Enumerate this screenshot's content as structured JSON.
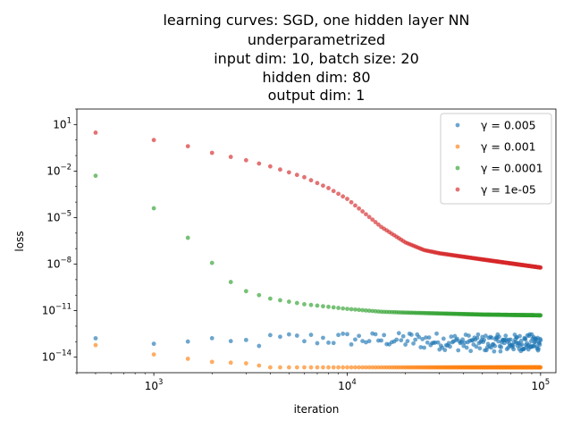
{
  "chart_data": {
    "type": "scatter",
    "title_lines": [
      "learning curves: SGD, one hidden layer NN",
      "underparametrized",
      "input dim: 10, batch size: 20",
      "hidden dim: 80",
      "output dim: 1"
    ],
    "xlabel": "iteration",
    "ylabel": "loss",
    "xscale": "log",
    "yscale": "log",
    "xlim": [
      400,
      120000
    ],
    "ylim": [
      1e-15,
      100.0
    ],
    "x_ticks": [
      {
        "value": 1000,
        "base": "10",
        "exp": "3"
      },
      {
        "value": 10000,
        "base": "10",
        "exp": "4"
      },
      {
        "value": 100000,
        "base": "10",
        "exp": "5"
      }
    ],
    "y_ticks": [
      {
        "value": 10,
        "base": "10",
        "exp": "1"
      },
      {
        "value": 0.01,
        "base": "10",
        "exp": "−2"
      },
      {
        "value": 1e-05,
        "base": "10",
        "exp": "−5"
      },
      {
        "value": 1e-08,
        "base": "10",
        "exp": "−8"
      },
      {
        "value": 1e-11,
        "base": "10",
        "exp": "−11"
      },
      {
        "value": 1e-14,
        "base": "10",
        "exp": "−14"
      }
    ],
    "grid": false,
    "legend_position": "top-right",
    "iteration_step": 500,
    "series": [
      {
        "name": "γ = 0.005",
        "color": "#1f77b4",
        "style": "noisy",
        "knots": [
          [
            500,
            1.2e-13
          ],
          [
            1000,
            1.1e-13
          ],
          [
            2000,
            6e-14
          ],
          [
            5000,
            1.5e-13
          ],
          [
            10000,
            1.5e-13
          ],
          [
            20000,
            1.3e-13
          ],
          [
            50000,
            8e-14
          ],
          [
            100000,
            9e-14
          ]
        ]
      },
      {
        "name": "γ = 0.001",
        "color": "#ff7f0e",
        "style": "smooth",
        "knots": [
          [
            500,
            6e-14
          ],
          [
            1000,
            1.5e-14
          ],
          [
            2000,
            5e-15
          ],
          [
            3000,
            4e-15
          ],
          [
            4000,
            2.2e-15
          ],
          [
            4500,
            2.2e-15
          ],
          [
            100000,
            2.2e-15
          ]
        ]
      },
      {
        "name": "γ = 0.0001",
        "color": "#2ca02c",
        "style": "smooth",
        "knots": [
          [
            500,
            0.005
          ],
          [
            1000,
            4e-05
          ],
          [
            1500,
            5e-07
          ],
          [
            2000,
            1.2e-08
          ],
          [
            2500,
            7e-10
          ],
          [
            3000,
            1.8e-10
          ],
          [
            4000,
            6e-11
          ],
          [
            6000,
            2.6e-11
          ],
          [
            10000,
            1.3e-11
          ],
          [
            15000,
            8.5e-12
          ],
          [
            20000,
            7.5e-12
          ],
          [
            50000,
            5.6e-12
          ],
          [
            100000,
            5e-12
          ]
        ]
      },
      {
        "name": "γ = 1e-05",
        "color": "#d62728",
        "style": "smooth",
        "knots": [
          [
            500,
            3
          ],
          [
            1000,
            1
          ],
          [
            1500,
            0.4
          ],
          [
            2000,
            0.15
          ],
          [
            3000,
            0.05
          ],
          [
            4000,
            0.02
          ],
          [
            6000,
            0.004
          ],
          [
            8000,
            0.0008
          ],
          [
            10000,
            0.00016
          ],
          [
            12000,
            2.5e-05
          ],
          [
            15000,
            2.5e-06
          ],
          [
            20000,
            2.5e-07
          ],
          [
            25000,
            8e-08
          ],
          [
            30000,
            5e-08
          ],
          [
            50000,
            2e-08
          ],
          [
            100000,
            6e-09
          ]
        ]
      }
    ]
  }
}
